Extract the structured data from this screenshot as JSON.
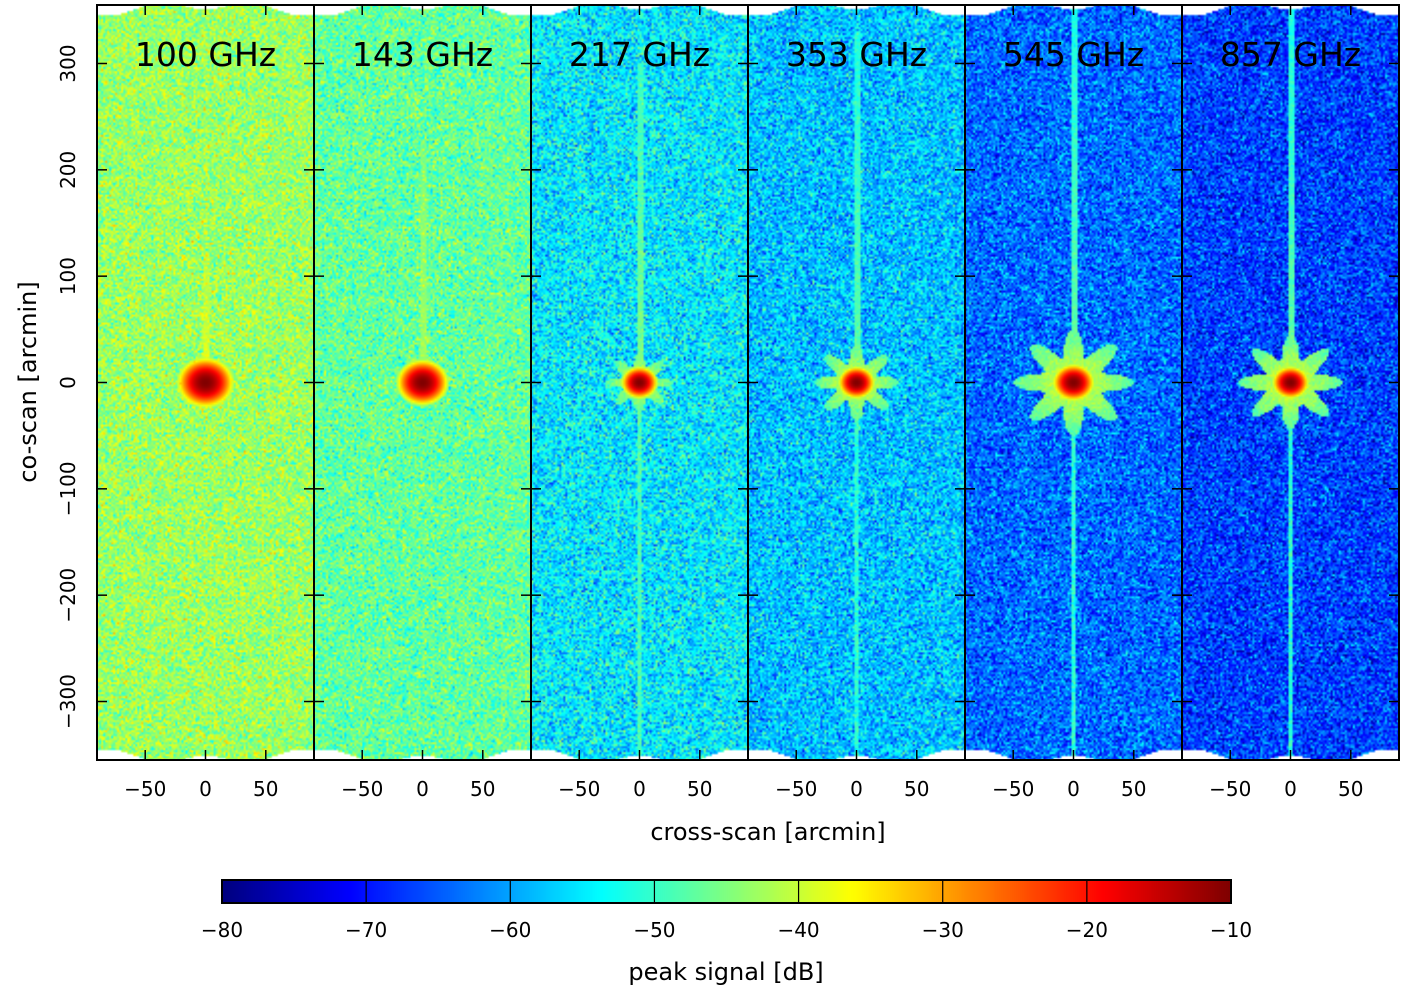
{
  "chart_data": {
    "type": "heatmap",
    "xlabel": "cross-scan [arcmin]",
    "ylabel": "co-scan [arcmin]",
    "xlim": [
      -90,
      90
    ],
    "ylim": [
      -355,
      355
    ],
    "x_ticks": [
      -50,
      0,
      50
    ],
    "x_tick_labels": [
      "−50",
      "0",
      "50"
    ],
    "y_ticks": [
      300,
      200,
      100,
      0,
      -100,
      -200,
      -300
    ],
    "y_tick_labels": [
      "300",
      "200",
      "100",
      "0",
      "−100",
      "−200",
      "−300"
    ],
    "panels": [
      {
        "title": "100 GHz",
        "background_db": -43,
        "noise_db": 6,
        "core_radius": 11,
        "halo_radius": 0,
        "stripe_top": 120,
        "stripe_db": -38,
        "lower_stripe": false
      },
      {
        "title": "143 GHz",
        "background_db": -47,
        "noise_db": 6,
        "core_radius": 10,
        "halo_radius": 16,
        "stripe_top": 230,
        "stripe_db": -42,
        "lower_stripe": false
      },
      {
        "title": "217 GHz",
        "background_db": -55,
        "noise_db": 7,
        "core_radius": 7,
        "halo_radius": 28,
        "stripe_top": 300,
        "stripe_db": -45,
        "lower_stripe": true
      },
      {
        "title": "353 GHz",
        "background_db": -58,
        "noise_db": 7,
        "core_radius": 7,
        "halo_radius": 36,
        "stripe_top": 330,
        "stripe_db": -47,
        "lower_stripe": true
      },
      {
        "title": "545 GHz",
        "background_db": -64,
        "noise_db": 7,
        "core_radius": 8,
        "halo_radius": 50,
        "stripe_top": 355,
        "stripe_db": -47,
        "lower_stripe": true
      },
      {
        "title": "857 GHz",
        "background_db": -67,
        "noise_db": 7,
        "core_radius": 7,
        "halo_radius": 44,
        "stripe_top": 355,
        "stripe_db": -47,
        "lower_stripe": true
      }
    ],
    "colorbar": {
      "label": "peak signal [dB]",
      "range": [
        -80,
        -10
      ],
      "ticks": [
        -80,
        -70,
        -60,
        -50,
        -40,
        -30,
        -20,
        -10
      ],
      "tick_labels": [
        "−80",
        "−70",
        "−60",
        "−50",
        "−40",
        "−30",
        "−20",
        "−10"
      ],
      "colormap": "jet"
    }
  }
}
